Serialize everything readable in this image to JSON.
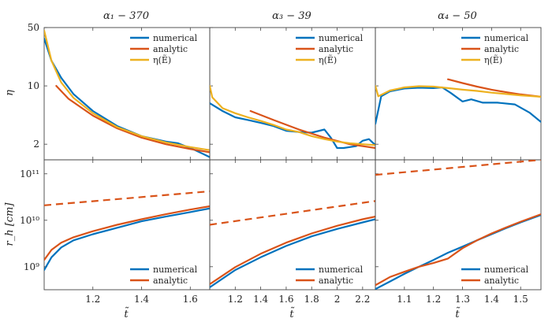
{
  "colors": {
    "numerical": "#0072BD",
    "analytic": "#D95319",
    "eta": "#EDB120",
    "axis": "#444444",
    "grid": "#bbbbbb"
  },
  "figure": {
    "titles": [
      "α₁ − 370",
      "α₃ − 39",
      "α₄ − 50"
    ],
    "xlabel": "t̃",
    "ylabel_top": "η",
    "ylabel_bottom": "r_h [cm]",
    "legend_top": [
      "numerical",
      "analytic",
      "η(Ẽ)"
    ],
    "legend_bottom": [
      "numerical",
      "analytic"
    ]
  },
  "chart_data": [
    {
      "type": "line",
      "panel": "top-left",
      "title": "α₁ − 370",
      "ylabel": "η",
      "yscale": "log",
      "xlim": [
        1.0,
        1.68
      ],
      "ylim": [
        1.3,
        50
      ],
      "xticks": [
        1.2,
        1.4,
        1.6
      ],
      "yticks": [
        2,
        10,
        50
      ],
      "series": [
        {
          "name": "numerical",
          "color_key": "numerical",
          "x": [
            1.0,
            1.03,
            1.07,
            1.12,
            1.2,
            1.3,
            1.4,
            1.5,
            1.55,
            1.62,
            1.68
          ],
          "y": [
            37,
            20,
            12.5,
            8,
            5,
            3.3,
            2.5,
            2.15,
            2.05,
            1.7,
            1.4
          ]
        },
        {
          "name": "analytic",
          "color_key": "analytic",
          "x": [
            1.05,
            1.1,
            1.2,
            1.3,
            1.4,
            1.5,
            1.6,
            1.68
          ],
          "y": [
            10,
            7,
            4.4,
            3.1,
            2.4,
            2.0,
            1.75,
            1.6
          ]
        },
        {
          "name": "η(Ẽ)",
          "color_key": "eta",
          "x": [
            1.0,
            1.03,
            1.07,
            1.12,
            1.2,
            1.3,
            1.4,
            1.5,
            1.6,
            1.68
          ],
          "y": [
            46,
            20,
            11,
            7.2,
            4.7,
            3.2,
            2.5,
            2.1,
            1.85,
            1.7
          ]
        }
      ]
    },
    {
      "type": "line",
      "panel": "top-middle",
      "title": "α₃ − 39",
      "yscale": "log",
      "xlim": [
        1.0,
        2.3
      ],
      "ylim": [
        1.3,
        50
      ],
      "xticks": [
        1.2,
        1.4,
        1.6,
        1.8,
        2,
        2.2
      ],
      "yticks": [
        2,
        10,
        50
      ],
      "series": [
        {
          "name": "numerical",
          "color_key": "numerical",
          "x": [
            1.0,
            1.1,
            1.2,
            1.3,
            1.4,
            1.5,
            1.6,
            1.7,
            1.8,
            1.9,
            1.95,
            2.0,
            2.05,
            2.1,
            2.15,
            2.2,
            2.25,
            2.3
          ],
          "y": [
            6.2,
            5.0,
            4.2,
            3.9,
            3.6,
            3.3,
            2.9,
            2.8,
            2.75,
            3.0,
            2.4,
            1.8,
            1.8,
            1.85,
            1.9,
            2.2,
            2.3,
            1.95
          ]
        },
        {
          "name": "analytic",
          "color_key": "analytic",
          "x": [
            1.32,
            1.5,
            1.7,
            1.9,
            2.1,
            2.3
          ],
          "y": [
            5.0,
            3.9,
            3.0,
            2.4,
            2.0,
            1.8
          ]
        },
        {
          "name": "η(Ẽ)",
          "color_key": "eta",
          "x": [
            1.0,
            1.02,
            1.1,
            1.2,
            1.3,
            1.4,
            1.5,
            1.6,
            1.7,
            1.8,
            1.9,
            2.0,
            2.1,
            2.2,
            2.3
          ],
          "y": [
            10,
            7.3,
            5.4,
            4.7,
            4.2,
            3.8,
            3.4,
            3.0,
            2.8,
            2.5,
            2.3,
            2.15,
            2.05,
            2.0,
            1.95
          ]
        }
      ]
    },
    {
      "type": "line",
      "panel": "top-right",
      "title": "α₄ − 50",
      "yscale": "log",
      "xlim": [
        1.0,
        1.57
      ],
      "ylim": [
        1.3,
        50
      ],
      "xticks": [
        1.1,
        1.2,
        1.3,
        1.4,
        1.5
      ],
      "yticks": [
        2,
        10,
        50
      ],
      "series": [
        {
          "name": "numerical",
          "color_key": "numerical",
          "x": [
            1.0,
            1.02,
            1.05,
            1.1,
            1.15,
            1.2,
            1.23,
            1.26,
            1.3,
            1.33,
            1.37,
            1.42,
            1.48,
            1.53,
            1.57
          ],
          "y": [
            3.5,
            7.5,
            8.6,
            9.3,
            9.5,
            9.4,
            9.6,
            8.2,
            6.5,
            6.9,
            6.3,
            6.3,
            6.0,
            4.8,
            3.7
          ]
        },
        {
          "name": "analytic",
          "color_key": "analytic",
          "x": [
            1.25,
            1.3,
            1.35,
            1.4,
            1.45,
            1.5,
            1.57
          ],
          "y": [
            12.0,
            10.8,
            9.8,
            9.0,
            8.4,
            7.9,
            7.4
          ]
        },
        {
          "name": "η(Ẽ)",
          "color_key": "eta",
          "x": [
            1.0,
            1.01,
            1.05,
            1.1,
            1.15,
            1.2,
            1.25,
            1.3,
            1.35,
            1.4,
            1.45,
            1.5,
            1.57
          ],
          "y": [
            10.0,
            7.5,
            8.8,
            9.6,
            9.9,
            9.8,
            9.4,
            9.0,
            8.7,
            8.3,
            8.0,
            7.7,
            7.4
          ]
        }
      ]
    },
    {
      "type": "line",
      "panel": "bottom-left",
      "ylabel": "r_h [cm]",
      "xlabel": "t̃",
      "yscale": "log",
      "xlim": [
        1.0,
        1.68
      ],
      "ylim": [
        320000000.0,
        200000000000.0
      ],
      "xticks": [
        1.2,
        1.4,
        1.6
      ],
      "yticks": [
        1000000000.0,
        10000000000.0,
        100000000000.0
      ],
      "ytick_labels": [
        "10⁹",
        "10¹⁰",
        "10¹¹"
      ],
      "series": [
        {
          "name": "numerical",
          "color_key": "numerical",
          "x": [
            1.0,
            1.03,
            1.07,
            1.12,
            1.2,
            1.3,
            1.4,
            1.5,
            1.6,
            1.68
          ],
          "y": [
            850000000.0,
            1600000000.0,
            2600000000.0,
            3700000000.0,
            5000000000.0,
            6900000000.0,
            9500000000.0,
            12000000000.0,
            15000000000.0,
            18000000000.0
          ]
        },
        {
          "name": "analytic",
          "color_key": "analytic",
          "x": [
            1.0,
            1.03,
            1.07,
            1.12,
            1.2,
            1.3,
            1.4,
            1.5,
            1.6,
            1.68
          ],
          "y": [
            1400000000.0,
            2300000000.0,
            3300000000.0,
            4300000000.0,
            5800000000.0,
            8000000000.0,
            10500000000.0,
            13500000000.0,
            17000000000.0,
            20000000000.0
          ]
        },
        {
          "name": "analytic-dashed",
          "color_key": "analytic",
          "dashed": true,
          "x": [
            1.0,
            1.68
          ],
          "y": [
            21000000000.0,
            42000000000.0
          ]
        }
      ]
    },
    {
      "type": "line",
      "panel": "bottom-middle",
      "xlabel": "t̃",
      "yscale": "log",
      "xlim": [
        1.0,
        2.3
      ],
      "ylim": [
        320000000.0,
        200000000000.0
      ],
      "xticks": [
        1.2,
        1.4,
        1.6,
        1.8,
        2,
        2.2
      ],
      "yticks": [
        1000000000.0,
        10000000000.0,
        100000000000.0
      ],
      "series": [
        {
          "name": "numerical",
          "color_key": "numerical",
          "x": [
            1.0,
            1.2,
            1.4,
            1.6,
            1.8,
            2.0,
            2.2,
            2.3
          ],
          "y": [
            360000000.0,
            850000000.0,
            1600000000.0,
            2800000000.0,
            4500000000.0,
            6500000000.0,
            9000000000.0,
            10500000000.0
          ]
        },
        {
          "name": "analytic",
          "color_key": "analytic",
          "x": [
            1.0,
            1.2,
            1.4,
            1.6,
            1.8,
            2.0,
            2.2,
            2.3
          ],
          "y": [
            420000000.0,
            980000000.0,
            1900000000.0,
            3300000000.0,
            5200000000.0,
            7600000000.0,
            10500000000.0,
            12000000000.0
          ]
        },
        {
          "name": "analytic-dashed",
          "color_key": "analytic",
          "dashed": true,
          "x": [
            1.0,
            2.3
          ],
          "y": [
            8000000000.0,
            26000000000.0
          ]
        }
      ]
    },
    {
      "type": "line",
      "panel": "bottom-right",
      "xlabel": "t̃",
      "yscale": "log",
      "xlim": [
        1.0,
        1.57
      ],
      "ylim": [
        320000000.0,
        200000000000.0
      ],
      "xticks": [
        1.1,
        1.2,
        1.3,
        1.4,
        1.5
      ],
      "yticks": [
        1000000000.0,
        10000000000.0,
        100000000000.0
      ],
      "series": [
        {
          "name": "numerical",
          "color_key": "numerical",
          "x": [
            1.0,
            1.05,
            1.1,
            1.15,
            1.2,
            1.25,
            1.3,
            1.35,
            1.4,
            1.45,
            1.5,
            1.57
          ],
          "y": [
            330000000.0,
            480000000.0,
            700000000.0,
            1000000000.0,
            1400000000.0,
            2000000000.0,
            2700000000.0,
            3700000000.0,
            5000000000.0,
            6800000000.0,
            9000000000.0,
            13000000000.0
          ]
        },
        {
          "name": "analytic",
          "color_key": "analytic",
          "x": [
            1.0,
            1.05,
            1.1,
            1.15,
            1.2,
            1.25,
            1.3,
            1.35,
            1.4,
            1.45,
            1.5,
            1.57
          ],
          "y": [
            400000000.0,
            600000000.0,
            780000000.0,
            1000000000.0,
            1200000000.0,
            1500000000.0,
            2500000000.0,
            3700000000.0,
            5200000000.0,
            7000000000.0,
            9300000000.0,
            13500000000.0
          ]
        },
        {
          "name": "analytic-dashed",
          "color_key": "analytic",
          "dashed": true,
          "x": [
            1.0,
            1.57
          ],
          "y": [
            95000000000.0,
            200000000000.0
          ]
        }
      ]
    }
  ]
}
